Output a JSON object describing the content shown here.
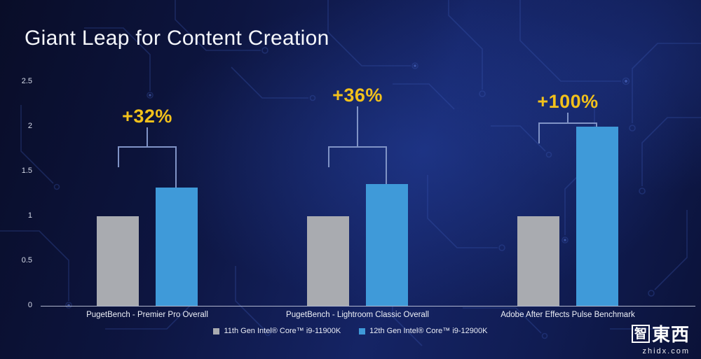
{
  "slide": {
    "title": "Giant Leap for Content Creation"
  },
  "chart_data": {
    "type": "bar",
    "title": "Giant Leap for Content Creation",
    "categories": [
      "PugetBench - Premier Pro Overall",
      "PugetBench - Lightroom Classic Overall",
      "Adobe After Effects Pulse Benchmark"
    ],
    "series": [
      {
        "name": "11th Gen Intel® Core™ i9-11900K",
        "color": "#a9abb0",
        "values": [
          1.0,
          1.0,
          1.0
        ]
      },
      {
        "name": "12th Gen Intel® Core™ i9-12900K",
        "color": "#3f9ad9",
        "values": [
          1.32,
          1.36,
          2.0
        ]
      }
    ],
    "annotations": [
      "+32%",
      "+36%",
      "+100%"
    ],
    "ylim": [
      0,
      2.5
    ],
    "yticks": [
      0,
      0.5,
      1,
      1.5,
      2,
      2.5
    ],
    "grid": false,
    "legend_position": "bottom",
    "annotation_layout": {
      "bracket_y": [
        1.78,
        1.78,
        2.05
      ],
      "text_y": [
        2.12,
        2.35,
        2.28
      ]
    }
  },
  "colors": {
    "background_dark": "#0b1238",
    "background_accent": "#152465",
    "bar_gray": "#a9abb0",
    "bar_blue": "#3f9ad9",
    "annotation_yellow": "#f2c11b",
    "bracket_line": "#8093c6",
    "axis_text": "#d6dbe9",
    "title_text": "#f5f7fc"
  },
  "watermark": {
    "logo_char": "智",
    "logo_chars": "東西",
    "site_text": "zhidx.com"
  }
}
